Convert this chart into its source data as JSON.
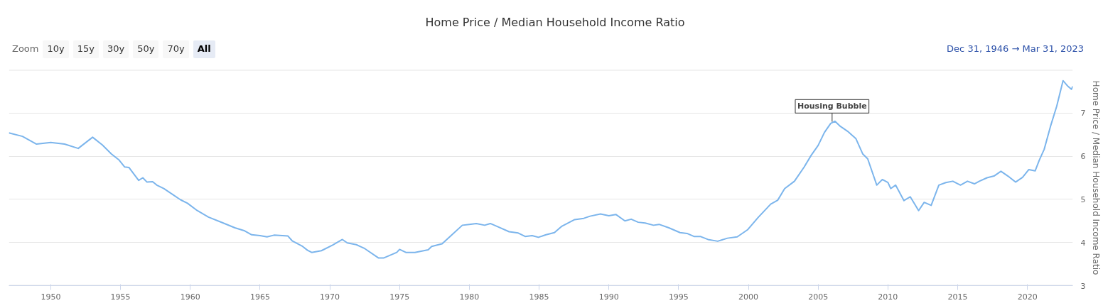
{
  "chart_data": {
    "type": "line",
    "title": "Home Price / Median Household Income Ratio",
    "ylabel": "Home Price / Median Household Income Ratio",
    "x": [
      1947.0,
      1947.97,
      1948.98,
      1950.0,
      1950.99,
      1951.97,
      1953.0,
      1953.7,
      1954.35,
      1954.9,
      1955.3,
      1955.6,
      1956.3,
      1956.6,
      1956.9,
      1957.3,
      1957.6,
      1958.1,
      1958.8,
      1959.3,
      1959.8,
      1960.5,
      1961.3,
      1962.3,
      1963.2,
      1963.9,
      1964.4,
      1965.0,
      1965.5,
      1966.0,
      1967.0,
      1967.3,
      1968.05,
      1968.4,
      1968.7,
      1969.4,
      1970.2,
      1970.9,
      1971.25,
      1971.9,
      1972.5,
      1973.5,
      1973.85,
      1974.8,
      1975.0,
      1975.45,
      1976.1,
      1977.05,
      1977.3,
      1978.05,
      1978.55,
      1979.5,
      1980.0,
      1980.5,
      1981.1,
      1981.5,
      1982.0,
      1982.85,
      1983.5,
      1984.0,
      1984.5,
      1984.95,
      1985.5,
      1986.1,
      1986.6,
      1987.55,
      1988.2,
      1988.65,
      1989.4,
      1990.0,
      1990.5,
      1991.15,
      1991.6,
      1992.1,
      1992.6,
      1993.2,
      1993.6,
      1994.3,
      1995.1,
      1995.6,
      1996.1,
      1996.55,
      1997.1,
      1997.8,
      1998.5,
      1999.2,
      1999.96,
      2000.7,
      2001.6,
      2002.1,
      2002.6,
      2003.3,
      2004.0,
      2004.5,
      2005.0,
      2005.45,
      2005.9,
      2006.2,
      2006.6,
      2007.1,
      2007.7,
      2008.2,
      2008.55,
      2009.2,
      2009.6,
      2010.0,
      2010.2,
      2010.55,
      2011.15,
      2011.6,
      2012.2,
      2012.6,
      2013.1,
      2013.65,
      2014.15,
      2014.65,
      2015.2,
      2015.7,
      2016.2,
      2016.55,
      2017.1,
      2017.6,
      2018.1,
      2018.6,
      2019.15,
      2019.65,
      2020.1,
      2020.55,
      2020.85,
      2021.2,
      2021.65,
      2022.1,
      2022.55,
      2022.9,
      2023.15,
      2023.25
    ],
    "series": [
      {
        "color": "#7cb5ec",
        "values": [
          6.54,
          6.46,
          6.28,
          6.32,
          6.28,
          6.18,
          6.44,
          6.26,
          6.05,
          5.91,
          5.75,
          5.74,
          5.44,
          5.5,
          5.4,
          5.41,
          5.33,
          5.25,
          5.1,
          4.99,
          4.91,
          4.74,
          4.59,
          4.46,
          4.34,
          4.27,
          4.18,
          4.16,
          4.13,
          4.17,
          4.15,
          4.04,
          3.91,
          3.82,
          3.77,
          3.81,
          3.94,
          4.07,
          3.99,
          3.95,
          3.86,
          3.64,
          3.64,
          3.77,
          3.84,
          3.77,
          3.77,
          3.83,
          3.91,
          3.97,
          4.12,
          4.4,
          4.42,
          4.44,
          4.4,
          4.44,
          4.37,
          4.25,
          4.22,
          4.14,
          4.16,
          4.12,
          4.18,
          4.23,
          4.37,
          4.53,
          4.56,
          4.61,
          4.66,
          4.62,
          4.65,
          4.5,
          4.54,
          4.47,
          4.45,
          4.4,
          4.42,
          4.34,
          4.23,
          4.21,
          4.14,
          4.14,
          4.07,
          4.03,
          4.1,
          4.13,
          4.3,
          4.58,
          4.89,
          4.98,
          5.25,
          5.42,
          5.75,
          6.02,
          6.25,
          6.55,
          6.76,
          6.81,
          6.69,
          6.58,
          6.41,
          6.05,
          5.94,
          5.33,
          5.46,
          5.39,
          5.25,
          5.33,
          4.97,
          5.06,
          4.74,
          4.93,
          4.86,
          5.33,
          5.39,
          5.42,
          5.33,
          5.42,
          5.36,
          5.42,
          5.5,
          5.54,
          5.65,
          5.54,
          5.4,
          5.51,
          5.69,
          5.66,
          5.91,
          6.16,
          6.69,
          7.16,
          7.75,
          7.62,
          7.55,
          7.62
        ]
      }
    ],
    "xlim": [
      1947.0,
      2023.25
    ],
    "xticks": [
      1950,
      1955,
      1960,
      1965,
      1970,
      1975,
      1980,
      1985,
      1990,
      1995,
      2000,
      2005,
      2010,
      2015,
      2020
    ],
    "ylim": [
      3,
      8
    ],
    "yticks": [
      3,
      4,
      5,
      6,
      7,
      {
        "value": 8,
        "label": null
      }
    ],
    "grid": "y",
    "annotations": [
      {
        "text": "Housing Bubble",
        "x": 2006.0,
        "y": 6.8
      },
      "Zoom",
      "10y",
      "15y",
      "30y",
      "50y",
      "70y",
      "All",
      "Dec 31, 1946 → Mar 31, 2023"
    ]
  }
}
